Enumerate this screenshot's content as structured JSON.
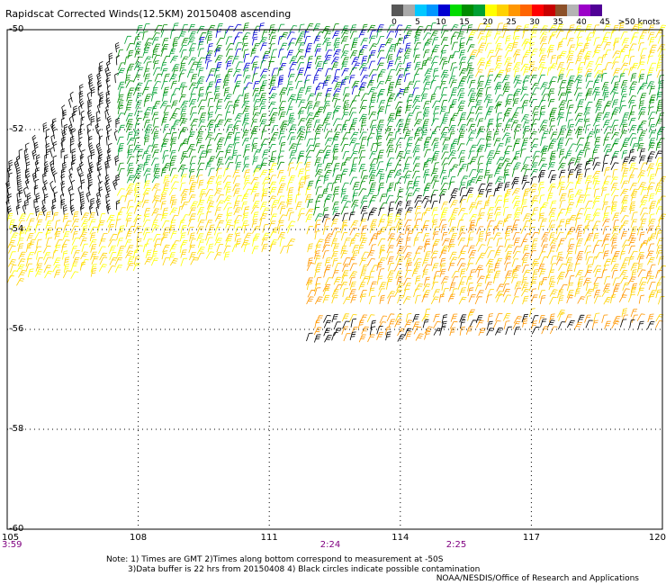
{
  "header": {
    "title": "Rapidscat Corrected Winds(12.5KM) 20150408 ascending"
  },
  "legend": {
    "colors": [
      "#575757",
      "#a9a9a9",
      "#00c8ff",
      "#0096ff",
      "#0000d2",
      "#00dc00",
      "#008c00",
      "#00a032",
      "#ffff00",
      "#ffd200",
      "#ff9600",
      "#ff6400",
      "#ff0000",
      "#c80000",
      "#8c5028",
      "#b4b4b4",
      "#9b00c8",
      "#500096"
    ],
    "labels": [
      "0",
      "5",
      "10",
      "15",
      "20",
      "25",
      "30",
      "35",
      "40",
      "45",
      ">50 knots"
    ]
  },
  "axes": {
    "lat_labels": [
      "-50",
      "-52",
      "-54",
      "-56",
      "-58",
      "-60"
    ],
    "lon_labels": [
      "105",
      "108",
      "111",
      "114",
      "117",
      "120"
    ],
    "time_labels": [
      "3:59",
      "2:24",
      "2:25"
    ]
  },
  "notes": {
    "line1": "Note: 1) Times are GMT 2)Times along bottom correspond to measurement at -50S",
    "line2": "3)Data buffer is 22 hrs from 20150408 4) Black circles indicate possible contamination",
    "credit": "NOAA/NESDIS/Office of Research and Applications"
  }
}
